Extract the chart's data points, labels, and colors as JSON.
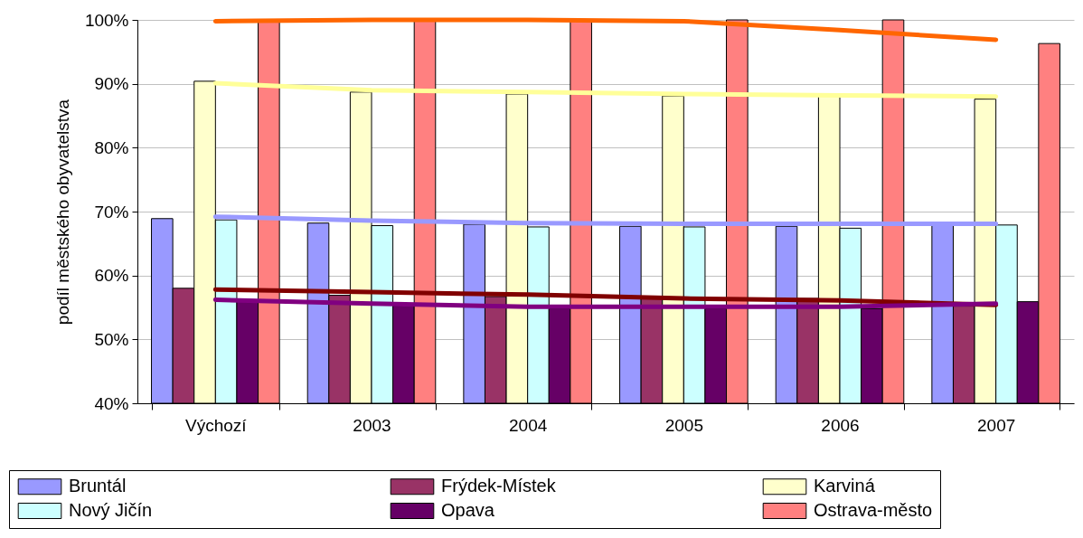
{
  "chart_data": {
    "type": "bar",
    "ylabel": "podíl městského obyvatelstva",
    "categories": [
      "Výchozí",
      "2003",
      "2004",
      "2005",
      "2006",
      "2007"
    ],
    "series": [
      {
        "name": "Bruntál",
        "color": "#9999ff",
        "values": [
          68.9,
          68.2,
          68.0,
          67.7,
          67.7,
          68.2
        ]
      },
      {
        "name": "Frýdek-Místek",
        "color": "#993366",
        "values": [
          58.0,
          56.9,
          56.7,
          56.4,
          56.4,
          55.2
        ]
      },
      {
        "name": "Karviná",
        "color": "#ffffcc",
        "values": [
          90.4,
          88.7,
          88.4,
          88.1,
          88.1,
          87.6
        ]
      },
      {
        "name": "Nový Jičín",
        "color": "#ccffff",
        "values": [
          68.7,
          67.8,
          67.6,
          67.6,
          67.4,
          67.9
        ]
      },
      {
        "name": "Opava",
        "color": "#660066",
        "values": [
          56.0,
          55.3,
          54.8,
          54.8,
          54.8,
          55.9
        ]
      },
      {
        "name": "Ostrava-město",
        "color": "#ff8080",
        "values": [
          100,
          100,
          100,
          100,
          100,
          96.3
        ]
      },
      {
        "type": "line",
        "color": "#ff6600",
        "values": [
          99.8,
          100,
          100,
          99.8,
          98.4,
          96.9
        ]
      },
      {
        "type": "line",
        "color": "#ffff99",
        "values": [
          90.1,
          89.0,
          88.7,
          88.4,
          88.2,
          88.0
        ]
      },
      {
        "type": "line",
        "color": "#9999ff",
        "values": [
          69.2,
          68.6,
          68.2,
          68.1,
          68.1,
          68.1
        ]
      },
      {
        "type": "line",
        "color": "#800000",
        "values": [
          57.8,
          57.4,
          57.0,
          56.4,
          56.1,
          55.4
        ]
      },
      {
        "type": "line",
        "color": "#800080",
        "values": [
          56.2,
          55.6,
          55.1,
          55.1,
          55.1,
          55.6
        ]
      }
    ],
    "ylim": [
      40,
      100
    ],
    "yticks": [
      {
        "value": 40,
        "label": "40%"
      },
      {
        "value": 50,
        "label": "50%"
      },
      {
        "value": 60,
        "label": "60%"
      },
      {
        "value": 70,
        "label": "70%"
      },
      {
        "value": 80,
        "label": "80%"
      },
      {
        "value": 90,
        "label": "90%"
      },
      {
        "value": 100,
        "label": "100%"
      }
    ],
    "grid": "y",
    "legend": "bottom"
  }
}
